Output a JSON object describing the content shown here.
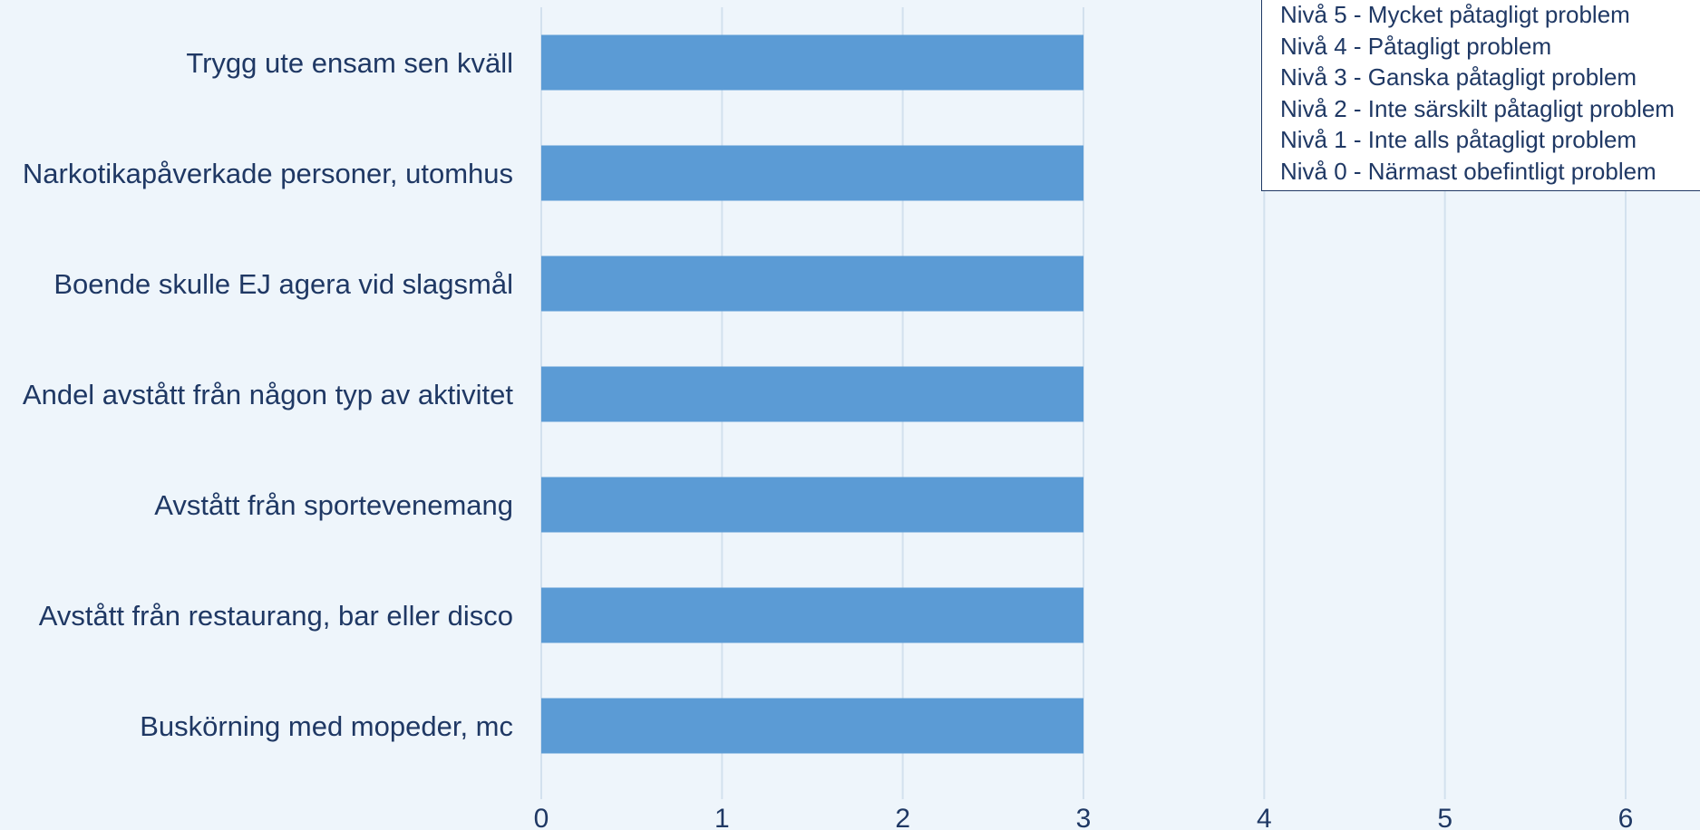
{
  "chart_data": {
    "type": "bar",
    "orientation": "horizontal",
    "categories": [
      "Trygg ute ensam sen kväll",
      "Narkotikapåverkade personer, utomhus",
      "Boende skulle EJ agera vid slagsmål",
      "Andel avstått från någon typ av aktivitet",
      "Avstått från sportevenemang",
      "Avstått från restaurang, bar eller disco",
      "Buskörning med mopeder, mc"
    ],
    "values": [
      3,
      3,
      3,
      3,
      3,
      3,
      3
    ],
    "xlim": [
      0,
      6
    ],
    "xticks": [
      "0",
      "1",
      "2",
      "3",
      "4",
      "5",
      "6"
    ],
    "grid": "vertical",
    "title": "",
    "xlabel": "",
    "ylabel": "",
    "legend_position": "top-right",
    "legend": [
      "Nivå 5 - Mycket påtagligt problem",
      "Nivå 4 - Påtagligt problem",
      "Nivå 3 - Ganska påtagligt problem",
      "Nivå 2 - Inte särskilt påtagligt problem",
      "Nivå 1 - Inte alls påtagligt problem",
      "Nivå 0 - Närmast obefintligt problem"
    ]
  },
  "colors": {
    "background": "#eef5fb",
    "bar": "#5b9bd5",
    "grid": "#d3e1ee",
    "text": "#1f3864"
  }
}
